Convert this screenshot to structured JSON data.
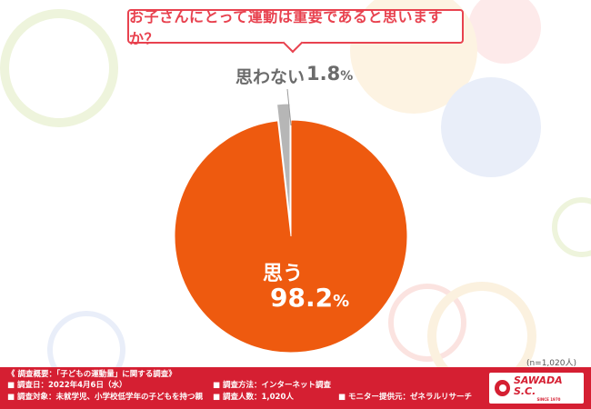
{
  "question": "お子さんにとって運動は重要であると思いますか？",
  "note": "(n=1,020人)",
  "chart_data": {
    "type": "pie",
    "title": "お子さんにとって運動は重要であると思いますか？",
    "slices": [
      {
        "label": "思う",
        "value": 98.2,
        "display_number": "98.2",
        "color": "#ee5a0f"
      },
      {
        "label": "思わない",
        "value": 1.8,
        "display_number": "1.8",
        "color": "#b6b6b6"
      }
    ],
    "unit": "%"
  },
  "footer": {
    "summary": "《 調査概要：「子どもの運動量」に関する調査》",
    "date": "■ 調査日：2022年4月6日（水）",
    "target": "■ 調査対象：未就学児、小学校低学年の子どもを持つ親",
    "method": "■ 調査方法：インターネット調査",
    "count": "■ 調査人数：1,020人",
    "provider": "■ モニター提供元：ゼネラルリサーチ"
  },
  "logo": {
    "text": "SAWADA S.C.",
    "sub": "SINCE 1970"
  },
  "colors": {
    "accent": "#e8424f",
    "footer": "#d51f32"
  }
}
